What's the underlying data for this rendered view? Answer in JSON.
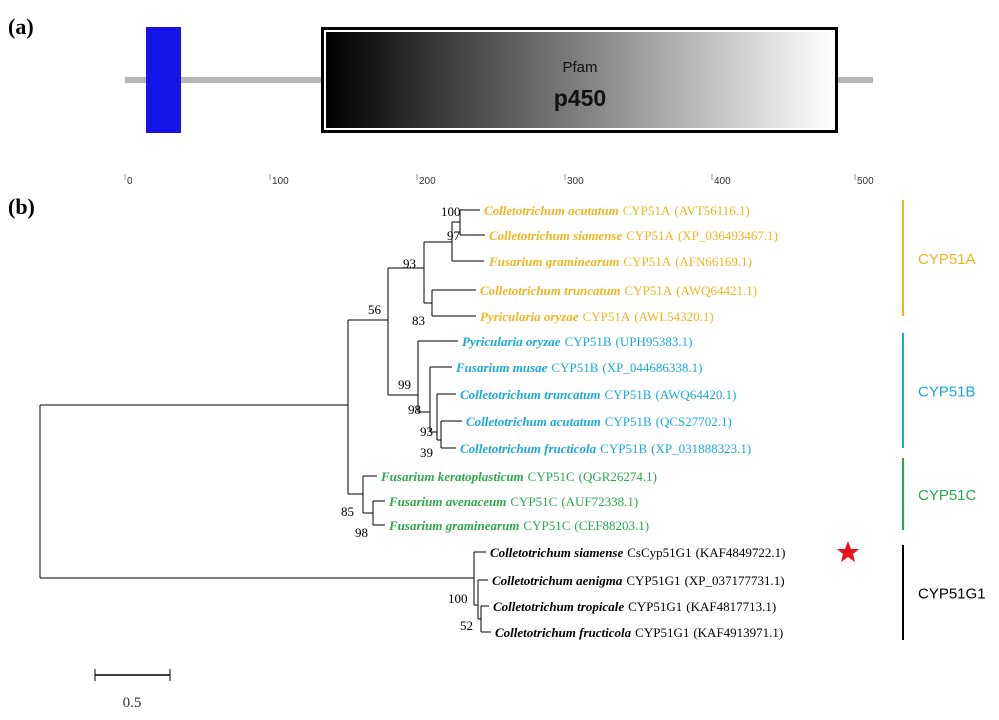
{
  "panel_a": {
    "label": "(a)",
    "domain": {
      "source": "Pfam",
      "name": "p450"
    },
    "scale_ticks": [
      0,
      100,
      200,
      300,
      400,
      500
    ]
  },
  "panel_b": {
    "label": "(b)",
    "leaves": [
      {
        "species": "Colletotrichum acutatum",
        "gene": "CYP51A",
        "accession": "(AVT56116.1)"
      },
      {
        "species": "Colletotrichum siamense",
        "gene": "CYP51A",
        "accession": "(XP_036493467.1)"
      },
      {
        "species": "Fusarium graminearum",
        "gene": "CYP51A",
        "accession": "(AFN66169.1)"
      },
      {
        "species": "Colletotrichum truncatum",
        "gene": "CYP51A",
        "accession": "(AWQ64421.1)"
      },
      {
        "species": "Pyricularia oryzae",
        "gene": "CYP51A",
        "accession": "(AWL54320.1)"
      },
      {
        "species": "Pyricularia oryzae",
        "gene": "CYP51B",
        "accession": "(UPH95383.1)"
      },
      {
        "species": "Fusarium musae",
        "gene": "CYP51B",
        "accession": "(XP_044686338.1)"
      },
      {
        "species": "Colletotrichum truncatum",
        "gene": "CYP51B",
        "accession": "(AWQ64420.1)"
      },
      {
        "species": "Colletotrichum acutatum",
        "gene": "CYP51B",
        "accession": "(QCS27702.1)"
      },
      {
        "species": "Colletotrichum fructicola",
        "gene": "CYP51B",
        "accession": "(XP_031888323.1)"
      },
      {
        "species": "Fusarium keratoplasticum",
        "gene": "CYP51C",
        "accession": "(QGR26274.1)"
      },
      {
        "species": "Fusarium avenaceum",
        "gene": "CYP51C",
        "accession": "(AUF72338.1)"
      },
      {
        "species": "Fusarium graminearum",
        "gene": "CYP51C",
        "accession": "(CEF88203.1)"
      },
      {
        "species": "Colletotrichum siamense",
        "gene": "CsCyp51G1",
        "accession": "(KAF4849722.1)"
      },
      {
        "species": "Colletotrichum aenigma",
        "gene": "CYP51G1",
        "accession": "(XP_037177731.1)"
      },
      {
        "species": "Colletotrichum tropicale",
        "gene": "CYP51G1",
        "accession": "(KAF4817713.1)"
      },
      {
        "species": "Colletotrichum fructicola",
        "gene": "CYP51G1",
        "accession": "(KAF4913971.1)"
      }
    ],
    "bootstrap": [
      100,
      97,
      93,
      83,
      56,
      99,
      98,
      93,
      39,
      85,
      98,
      100,
      52
    ],
    "clades": [
      "CYP51A",
      "CYP51B",
      "CYP51C",
      "CYP51G1"
    ],
    "scale_bar": 0.5
  }
}
